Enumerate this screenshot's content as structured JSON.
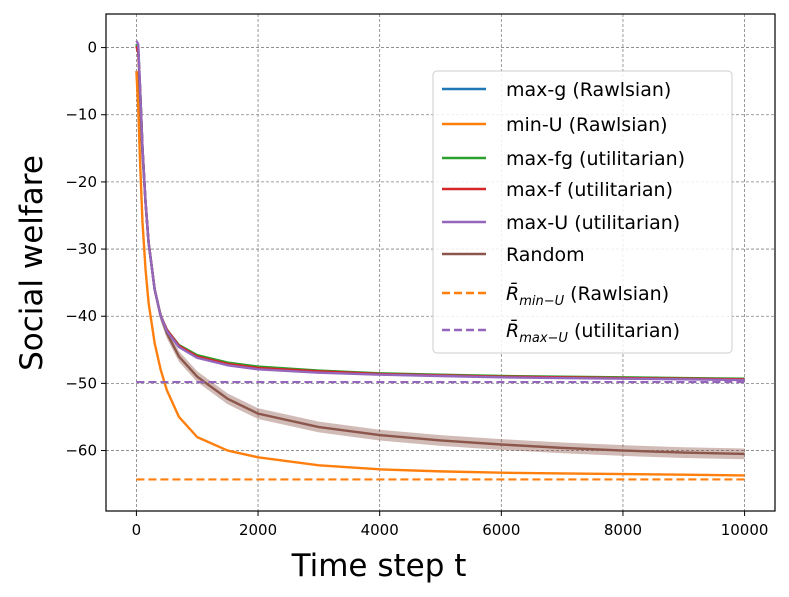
{
  "chart_data": {
    "type": "line",
    "title": "",
    "xlabel": "Time step t",
    "ylabel": "Social welfare",
    "xlim": [
      -500,
      10500
    ],
    "ylim": [
      -69,
      5
    ],
    "xticks": [
      0,
      2000,
      4000,
      6000,
      8000,
      10000
    ],
    "xtick_labels": [
      "0",
      "2000",
      "4000",
      "6000",
      "8000",
      "10000"
    ],
    "yticks": [
      0,
      -10,
      -20,
      -30,
      -40,
      -50,
      -60
    ],
    "ytick_labels": [
      "0",
      "−10",
      "−20",
      "−30",
      "−40",
      "−50",
      "−60"
    ],
    "grid": true,
    "legend_position": "upper-right",
    "series": [
      {
        "name": "max-g (Rawlsian)",
        "color": "#1f77b4",
        "style": "solid",
        "x": [
          0,
          30,
          60,
          100,
          150,
          200,
          300,
          400,
          500,
          700,
          1000,
          1500,
          2000,
          3000,
          4000,
          5000,
          6000,
          7000,
          8000,
          9000,
          10000
        ],
        "y": [
          0,
          0,
          -6,
          -15,
          -23,
          -29,
          -36,
          -40,
          -42,
          -44.5,
          -46,
          -47.2,
          -47.8,
          -48.3,
          -48.6,
          -48.8,
          -49,
          -49.1,
          -49.2,
          -49.3,
          -49.4
        ]
      },
      {
        "name": "min-U (Rawlsian)",
        "color": "#ff7f0e",
        "style": "solid",
        "x": [
          0,
          30,
          60,
          100,
          150,
          200,
          300,
          400,
          500,
          700,
          1000,
          1500,
          2000,
          3000,
          4000,
          5000,
          6000,
          7000,
          8000,
          9000,
          10000
        ],
        "y": [
          -3.5,
          -9,
          -17,
          -26,
          -33,
          -38,
          -44,
          -48,
          -51,
          -55,
          -58,
          -60,
          -61,
          -62.2,
          -62.8,
          -63.1,
          -63.3,
          -63.4,
          -63.5,
          -63.6,
          -63.7
        ]
      },
      {
        "name": "max-fg (utilitarian)",
        "color": "#2ca02c",
        "style": "solid",
        "x": [
          0,
          30,
          60,
          100,
          150,
          200,
          300,
          400,
          500,
          700,
          1000,
          1500,
          2000,
          3000,
          4000,
          5000,
          6000,
          7000,
          8000,
          9000,
          10000
        ],
        "y": [
          0.5,
          -0.5,
          -6,
          -15,
          -23,
          -29,
          -36,
          -40,
          -42,
          -44.3,
          -45.8,
          -46.9,
          -47.5,
          -48.1,
          -48.5,
          -48.7,
          -48.9,
          -49,
          -49.1,
          -49.2,
          -49.3
        ]
      },
      {
        "name": "max-f (utilitarian)",
        "color": "#d62728",
        "style": "solid",
        "x": [
          0,
          30,
          60,
          100,
          150,
          200,
          300,
          400,
          500,
          700,
          1000,
          1500,
          2000,
          3000,
          4000,
          5000,
          6000,
          7000,
          8000,
          9000,
          10000
        ],
        "y": [
          0.2,
          -0.8,
          -6,
          -15,
          -23,
          -29,
          -36,
          -40,
          -42,
          -44.4,
          -46,
          -47.1,
          -47.7,
          -48.2,
          -48.6,
          -48.8,
          -49,
          -49.1,
          -49.2,
          -49.3,
          -49.4
        ]
      },
      {
        "name": "max-U (utilitarian)",
        "color": "#9467bd",
        "style": "solid",
        "x": [
          0,
          30,
          60,
          100,
          150,
          200,
          300,
          400,
          500,
          700,
          1000,
          1500,
          2000,
          3000,
          4000,
          5000,
          6000,
          7000,
          8000,
          9000,
          10000
        ],
        "y": [
          1,
          0.5,
          -6,
          -15,
          -23,
          -29,
          -36,
          -40,
          -42.2,
          -44.6,
          -46.2,
          -47.3,
          -47.9,
          -48.4,
          -48.7,
          -48.9,
          -49.1,
          -49.2,
          -49.3,
          -49.4,
          -49.5
        ]
      },
      {
        "name": "Random",
        "color": "#8c564b",
        "style": "solid",
        "band": 0.8,
        "x": [
          0,
          30,
          60,
          100,
          150,
          200,
          300,
          400,
          500,
          700,
          1000,
          1500,
          2000,
          3000,
          4000,
          5000,
          6000,
          7000,
          8000,
          9000,
          10000
        ],
        "y": [
          -3.5,
          -4.5,
          -9,
          -16,
          -23,
          -29,
          -36,
          -40,
          -42.5,
          -46,
          -49,
          -52.3,
          -54.5,
          -56.5,
          -57.7,
          -58.5,
          -59.1,
          -59.6,
          -60,
          -60.3,
          -60.5
        ]
      },
      {
        "name": "R̄min−U (Rawlsian)",
        "color": "#ff7f0e",
        "style": "dashed",
        "x": [
          0,
          10000
        ],
        "y": [
          -64.3,
          -64.3
        ]
      },
      {
        "name": "R̄max−U (utilitarian)",
        "color": "#9467bd",
        "style": "dashed",
        "x": [
          0,
          10000
        ],
        "y": [
          -49.8,
          -49.8
        ]
      }
    ],
    "legend": {
      "entries": [
        {
          "text": "max-g (Rawlsian)",
          "color": "#1f77b4",
          "style": "solid"
        },
        {
          "text": "min-U (Rawlsian)",
          "color": "#ff7f0e",
          "style": "solid"
        },
        {
          "text": "max-fg (utilitarian)",
          "color": "#2ca02c",
          "style": "solid"
        },
        {
          "text": "max-f (utilitarian)",
          "color": "#d62728",
          "style": "solid"
        },
        {
          "text": "max-U (utilitarian)",
          "color": "#9467bd",
          "style": "solid"
        },
        {
          "text": "Random",
          "color": "#8c564b",
          "style": "solid"
        },
        {
          "text": "R̄",
          "sub": "min−U",
          "tail": " (Rawlsian)",
          "color": "#ff7f0e",
          "style": "dashed"
        },
        {
          "text": "R̄",
          "sub": "max−U",
          "tail": " (utilitarian)",
          "color": "#9467bd",
          "style": "dashed"
        }
      ]
    }
  }
}
